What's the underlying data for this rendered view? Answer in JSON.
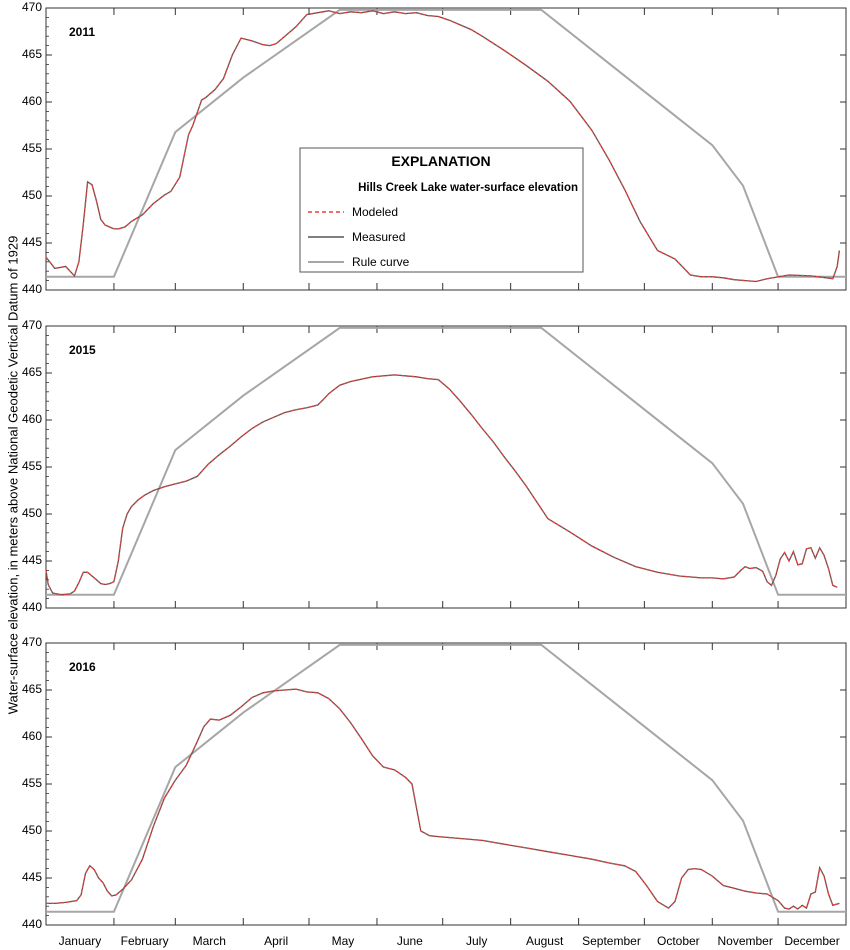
{
  "chart_data": {
    "type": "line",
    "ylabel": "Water-surface elevation, in meters above National Geodetic Vertical Datum of 1929",
    "months": [
      "January",
      "February",
      "March",
      "April",
      "May",
      "June",
      "July",
      "August",
      "September",
      "October",
      "November",
      "December"
    ],
    "ylim": [
      440,
      470
    ],
    "yticks": [
      440,
      445,
      450,
      455,
      460,
      465,
      470
    ],
    "legend": {
      "title": "EXPLANATION",
      "subtitle": "Hills Creek Lake water-surface elevation",
      "entries": [
        {
          "label": "Modeled",
          "style": "dashed",
          "color": "#e8413c"
        },
        {
          "label": "Measured",
          "style": "solid",
          "color": "#555555"
        },
        {
          "label": "Rule curve",
          "style": "solid",
          "color": "#a6a6a6"
        }
      ]
    },
    "rule_curve": {
      "x": [
        1,
        32,
        60,
        91,
        135,
        227,
        305,
        319,
        335,
        366
      ],
      "y": [
        441.4,
        441.4,
        456.8,
        462.6,
        469.8,
        469.8,
        455.4,
        451.1,
        441.4,
        441.4
      ]
    },
    "panels": [
      {
        "label": "2011",
        "x": [
          1,
          5,
          10,
          14,
          16,
          18,
          20,
          22,
          24,
          26,
          28,
          30,
          32,
          34,
          37,
          40,
          45,
          50,
          55,
          58,
          62,
          66,
          68,
          72,
          74,
          78,
          82,
          86,
          90,
          95,
          100,
          103,
          106,
          110,
          115,
          120,
          125,
          130,
          135,
          140,
          145,
          150,
          155,
          160,
          165,
          170,
          175,
          180,
          185,
          190,
          195,
          200,
          210,
          220,
          230,
          240,
          250,
          258,
          265,
          272,
          280,
          288,
          295,
          300,
          305,
          310,
          315,
          320,
          325,
          330,
          340,
          350,
          357,
          360,
          362,
          363
        ],
        "y": [
          443.5,
          442.3,
          442.5,
          441.5,
          443,
          447,
          451.5,
          451.2,
          449.5,
          447.5,
          446.9,
          446.7,
          446.5,
          446.5,
          446.7,
          447.3,
          448,
          449.2,
          450.1,
          450.5,
          452,
          456.5,
          457.5,
          460.2,
          460.5,
          461.3,
          462.5,
          465,
          466.8,
          466.5,
          466.1,
          466,
          466.2,
          467,
          468,
          469.3,
          469.5,
          469.7,
          469.4,
          469.6,
          469.5,
          469.7,
          469.4,
          469.6,
          469.4,
          469.5,
          469.2,
          469.1,
          468.7,
          468.2,
          467.7,
          467,
          465.5,
          463.9,
          462.2,
          460.1,
          457,
          453.8,
          450.7,
          447.3,
          444.2,
          443.3,
          441.6,
          441.4,
          441.4,
          441.3,
          441.1,
          441,
          440.9,
          441.2,
          441.6,
          441.5,
          441.3,
          441.2,
          442.5,
          444.2
        ]
      },
      {
        "label": "2015",
        "x": [
          1,
          2,
          4,
          8,
          12,
          14,
          16,
          18,
          20,
          22,
          24,
          26,
          28,
          30,
          32,
          34,
          36,
          38,
          40,
          43,
          46,
          50,
          55,
          60,
          65,
          70,
          75,
          80,
          85,
          90,
          95,
          100,
          105,
          110,
          115,
          120,
          125,
          128,
          130,
          135,
          140,
          150,
          160,
          170,
          175,
          180,
          185,
          190,
          195,
          200,
          205,
          210,
          215,
          220,
          230,
          240,
          250,
          260,
          270,
          280,
          290,
          300,
          305,
          310,
          315,
          318,
          320,
          322,
          325,
          328,
          330,
          332,
          334,
          336,
          338,
          340,
          342,
          344,
          346,
          348,
          350,
          352,
          354,
          356,
          358,
          360,
          362
        ],
        "y": [
          444,
          442.5,
          441.6,
          441.4,
          441.5,
          441.8,
          442.7,
          443.8,
          443.8,
          443.4,
          443,
          442.6,
          442.5,
          442.6,
          442.8,
          445,
          448.5,
          450,
          450.8,
          451.5,
          452,
          452.5,
          452.9,
          453.2,
          453.5,
          454,
          455.3,
          456.3,
          457.2,
          458.2,
          459.1,
          459.8,
          460.3,
          460.8,
          461.1,
          461.3,
          461.6,
          462.3,
          462.8,
          463.7,
          464.1,
          464.6,
          464.8,
          464.6,
          464.4,
          464.3,
          463.3,
          462,
          460.6,
          459.1,
          457.7,
          456.1,
          454.6,
          453,
          449.5,
          448.1,
          446.6,
          445.4,
          444.4,
          443.8,
          443.4,
          443.2,
          443.2,
          443.1,
          443.3,
          444,
          444.4,
          444.2,
          444.3,
          443.9,
          442.8,
          442.4,
          443.5,
          445.2,
          445.9,
          445,
          446,
          444.6,
          444.7,
          446.3,
          446.4,
          445.3,
          446.4,
          445.6,
          444.2,
          442.4,
          442.2
        ]
      },
      {
        "label": "2016",
        "x": [
          1,
          5,
          10,
          15,
          17,
          19,
          21,
          23,
          25,
          27,
          29,
          31,
          33,
          36,
          40,
          45,
          50,
          55,
          60,
          65,
          70,
          73,
          76,
          80,
          85,
          90,
          95,
          100,
          105,
          110,
          115,
          120,
          125,
          130,
          135,
          140,
          145,
          150,
          155,
          160,
          165,
          168,
          170,
          172,
          176,
          180,
          190,
          200,
          210,
          220,
          230,
          240,
          250,
          258,
          265,
          270,
          275,
          280,
          285,
          288,
          291,
          294,
          297,
          300,
          305,
          310,
          315,
          320,
          325,
          330,
          335,
          338,
          340,
          342,
          344,
          346,
          348,
          350,
          352,
          354,
          356,
          358,
          360,
          363
        ],
        "y": [
          442.3,
          442.3,
          442.4,
          442.6,
          443.2,
          445.5,
          446.3,
          445.9,
          445,
          444.5,
          443.6,
          443.1,
          443.2,
          443.8,
          444.8,
          447,
          450.5,
          453.5,
          455.4,
          457,
          459.5,
          461.1,
          461.9,
          461.8,
          462.3,
          463.2,
          464.2,
          464.7,
          464.9,
          465,
          465.1,
          464.8,
          464.7,
          464.1,
          463,
          461.5,
          459.8,
          458,
          456.8,
          456.5,
          455.7,
          455,
          452.5,
          450,
          449.5,
          449.4,
          449.2,
          449,
          448.6,
          448.2,
          447.8,
          447.4,
          447,
          446.6,
          446.3,
          445.7,
          444.2,
          442.5,
          441.8,
          442.5,
          445,
          445.9,
          446,
          445.9,
          445.2,
          444.2,
          443.9,
          443.6,
          443.4,
          443.3,
          442.6,
          441.8,
          441.7,
          442,
          441.7,
          442.1,
          441.8,
          443.3,
          443.5,
          446.1,
          445.2,
          443.3,
          442.1,
          442.3
        ]
      }
    ]
  }
}
